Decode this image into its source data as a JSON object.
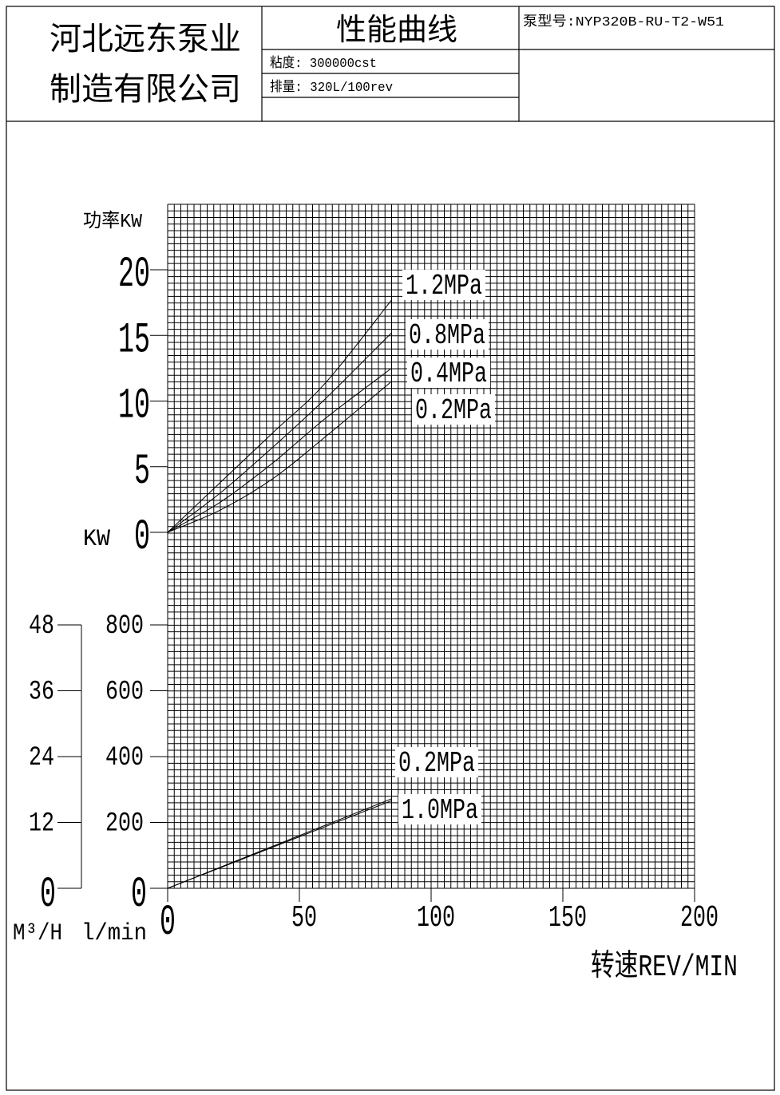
{
  "header": {
    "company_line1": "河北远东泵业",
    "company_line2": "制造有限公司",
    "title": "性能曲线",
    "pump_model": "泵型号:NYP320B-RU-T2-W51",
    "viscosity": "粘度: 300000cst",
    "displacement": "排量: 320L/100rev"
  },
  "chart_data": [
    {
      "type": "line",
      "name": "power",
      "ylabel_top": "功率KW",
      "ylabel_unit": "KW",
      "ylim": [
        0,
        20
      ],
      "yticks": [
        "0",
        "5",
        "10",
        "15",
        "20"
      ],
      "xlim": [
        0,
        200
      ],
      "series": [
        {
          "name": "1.2MPa",
          "x": [
            0,
            20,
            40,
            60,
            85
          ],
          "y": [
            0,
            3.8,
            7.6,
            11.4,
            17.7
          ]
        },
        {
          "name": "0.8MPa",
          "x": [
            0,
            20,
            40,
            60,
            85
          ],
          "y": [
            0,
            3.0,
            6.5,
            10.2,
            15.2
          ]
        },
        {
          "name": "0.4MPa",
          "x": [
            0,
            20,
            40,
            60,
            85
          ],
          "y": [
            0,
            2.3,
            5.3,
            8.7,
            12.5
          ]
        },
        {
          "name": "0.2MPa",
          "x": [
            0,
            20,
            40,
            60,
            85
          ],
          "y": [
            0,
            1.7,
            4.1,
            7.3,
            11.5
          ]
        }
      ],
      "grid": true
    },
    {
      "type": "line",
      "name": "flow",
      "ylim": [
        0,
        800
      ],
      "yticks_lmin": [
        "0",
        "200",
        "400",
        "600",
        "800"
      ],
      "yticks_m3h": [
        "0",
        "12",
        "24",
        "36",
        "48"
      ],
      "ylabel_m3h": "M³/H",
      "ylabel_lmin": "l/min",
      "xlim": [
        0,
        200
      ],
      "xticks": [
        "0",
        "50",
        "100",
        "150",
        "200"
      ],
      "xlabel": "转速REV/MIN",
      "series": [
        {
          "name": "0.2MPa",
          "x": [
            0,
            85
          ],
          "y": [
            0,
            272
          ]
        },
        {
          "name": "1.0MPa",
          "x": [
            0,
            85
          ],
          "y": [
            0,
            266
          ]
        }
      ],
      "grid": true
    }
  ]
}
